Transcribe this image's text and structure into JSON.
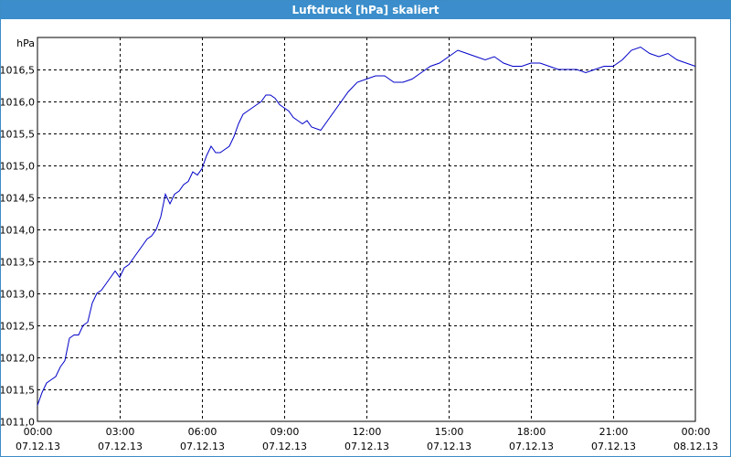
{
  "window": {
    "title": "Luftdruck [hPa] skaliert"
  },
  "chart_data": {
    "type": "line",
    "title": "Luftdruck [hPa] skaliert",
    "xlabel": "",
    "ylabel": "hPa",
    "ylim": [
      1011.0,
      1017.0
    ],
    "xlim_hours": [
      0,
      24
    ],
    "grid": true,
    "line_color": "#0000c8",
    "y_ticks": [
      "1011,0",
      "1011,5",
      "1012,0",
      "1012,5",
      "1013,0",
      "1013,5",
      "1014,0",
      "1014,5",
      "1015,0",
      "1015,5",
      "1016,0",
      "1016,5"
    ],
    "y_tick_values": [
      1011.0,
      1011.5,
      1012.0,
      1012.5,
      1013.0,
      1013.5,
      1014.0,
      1014.5,
      1015.0,
      1015.5,
      1016.0,
      1016.5
    ],
    "x_ticks": [
      {
        "time": "00:00",
        "date": "07.12.13"
      },
      {
        "time": "03:00",
        "date": "07.12.13"
      },
      {
        "time": "06:00",
        "date": "07.12.13"
      },
      {
        "time": "09:00",
        "date": "07.12.13"
      },
      {
        "time": "12:00",
        "date": "07.12.13"
      },
      {
        "time": "15:00",
        "date": "07.12.13"
      },
      {
        "time": "18:00",
        "date": "07.12.13"
      },
      {
        "time": "21:00",
        "date": "07.12.13"
      },
      {
        "time": "00:00",
        "date": "08.12.13"
      }
    ],
    "series": [
      {
        "x": [
          "00:00",
          "00:10",
          "00:20",
          "00:30",
          "00:40",
          "00:50",
          "01:00",
          "01:10",
          "01:20",
          "01:30",
          "01:40",
          "01:50",
          "02:00",
          "02:10",
          "02:20",
          "02:30",
          "02:40",
          "02:50",
          "03:00",
          "03:10",
          "03:20",
          "03:30",
          "03:40",
          "03:50",
          "04:00",
          "04:10",
          "04:20",
          "04:30",
          "04:40",
          "04:50",
          "05:00",
          "05:10",
          "05:20",
          "05:30",
          "05:40",
          "05:50",
          "06:00",
          "06:10",
          "06:20",
          "06:30",
          "06:40",
          "06:50",
          "07:00",
          "07:10",
          "07:20",
          "07:30",
          "07:40",
          "07:50",
          "08:00",
          "08:10",
          "08:20",
          "08:30",
          "08:40",
          "08:50",
          "09:00",
          "09:10",
          "09:20",
          "09:30",
          "09:40",
          "09:50",
          "10:00",
          "10:20",
          "10:40",
          "11:00",
          "11:20",
          "11:40",
          "12:00",
          "12:20",
          "12:40",
          "13:00",
          "13:20",
          "13:40",
          "14:00",
          "14:20",
          "14:40",
          "15:00",
          "15:20",
          "15:40",
          "16:00",
          "16:20",
          "16:40",
          "17:00",
          "17:20",
          "17:40",
          "18:00",
          "18:20",
          "18:40",
          "19:00",
          "19:20",
          "19:40",
          "20:00",
          "20:20",
          "20:40",
          "21:00",
          "21:20",
          "21:40",
          "22:00",
          "22:20",
          "22:40",
          "23:00",
          "23:20",
          "23:40",
          "24:00"
        ],
        "values": [
          1011.25,
          1011.45,
          1011.6,
          1011.65,
          1011.7,
          1011.85,
          1011.95,
          1012.3,
          1012.35,
          1012.35,
          1012.5,
          1012.55,
          1012.85,
          1013.0,
          1013.05,
          1013.15,
          1013.25,
          1013.35,
          1013.25,
          1013.4,
          1013.45,
          1013.55,
          1013.65,
          1013.75,
          1013.85,
          1013.9,
          1014.0,
          1014.2,
          1014.55,
          1014.4,
          1014.55,
          1014.6,
          1014.7,
          1014.75,
          1014.9,
          1014.85,
          1014.95,
          1015.15,
          1015.3,
          1015.2,
          1015.2,
          1015.25,
          1015.3,
          1015.45,
          1015.65,
          1015.8,
          1015.85,
          1015.9,
          1015.95,
          1016.0,
          1016.1,
          1016.1,
          1016.05,
          1015.95,
          1015.9,
          1015.85,
          1015.75,
          1015.7,
          1015.65,
          1015.7,
          1015.6,
          1015.55,
          1015.75,
          1015.95,
          1016.15,
          1016.3,
          1016.35,
          1016.4,
          1016.4,
          1016.3,
          1016.3,
          1016.35,
          1016.45,
          1016.55,
          1016.6,
          1016.7,
          1016.8,
          1016.75,
          1016.7,
          1016.65,
          1016.7,
          1016.6,
          1016.55,
          1016.55,
          1016.6,
          1016.6,
          1016.55,
          1016.5,
          1016.5,
          1016.5,
          1016.45,
          1016.5,
          1016.55,
          1016.55,
          1016.65,
          1016.8,
          1016.85,
          1016.75,
          1016.7,
          1016.75,
          1016.65,
          1016.6,
          1016.55
        ]
      }
    ]
  }
}
